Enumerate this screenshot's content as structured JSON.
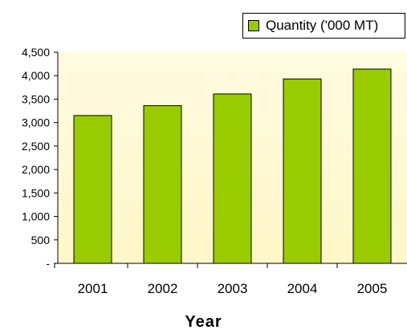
{
  "chart_data": {
    "type": "bar",
    "categories": [
      "2001",
      "2002",
      "2003",
      "2004",
      "2005"
    ],
    "series": [
      {
        "name": "Quantity ('000 MT)",
        "values": [
          3150,
          3360,
          3610,
          3930,
          4140
        ],
        "color": "#99cc00"
      }
    ],
    "xlabel": "Year",
    "ylabel": "",
    "ylim": [
      0,
      4500
    ],
    "y_ticks": [
      {
        "value": 0,
        "label": "-"
      },
      {
        "value": 500,
        "label": "500"
      },
      {
        "value": 1000,
        "label": "1,000"
      },
      {
        "value": 1500,
        "label": "1,500"
      },
      {
        "value": 2000,
        "label": "2,000"
      },
      {
        "value": 2500,
        "label": "2,500"
      },
      {
        "value": 3000,
        "label": "3,000"
      },
      {
        "value": 3500,
        "label": "3,500"
      },
      {
        "value": 4000,
        "label": "4,000"
      },
      {
        "value": 4500,
        "label": "4,500"
      }
    ],
    "legend": {
      "label": "Quantity ('000 MT)",
      "position": "top-right"
    },
    "grid": false,
    "plot_background": [
      "#fffbe0",
      "#fff7c8"
    ]
  }
}
